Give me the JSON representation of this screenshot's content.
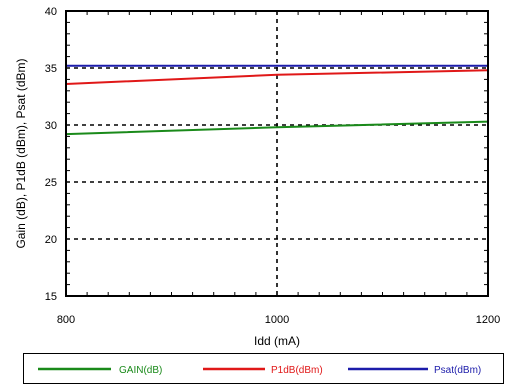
{
  "chart_data": {
    "type": "line",
    "xlabel": "Idd (mA)",
    "ylabel": "Gain (dB), P1dB (dBm), Psat (dBm)",
    "xlim": [
      800,
      1200
    ],
    "ylim": [
      15,
      40
    ],
    "x_ticks": [
      "800",
      "1000",
      "1200"
    ],
    "y_ticks": [
      "15",
      "20",
      "25",
      "30",
      "35",
      "40"
    ],
    "grid": "dashed, major ticks",
    "legend_position": "bottom",
    "series": [
      {
        "name": "GAIN(dB)",
        "color": "#1a8a1a",
        "x": [
          800,
          1000,
          1200
        ],
        "y": [
          29.2,
          29.8,
          30.3
        ]
      },
      {
        "name": "P1dB(dBm)",
        "color": "#e01818",
        "x": [
          800,
          1000,
          1200
        ],
        "y": [
          33.6,
          34.4,
          34.8
        ]
      },
      {
        "name": "Psat(dBm)",
        "color": "#1c1caa",
        "x": [
          800,
          1000,
          1200
        ],
        "y": [
          35.2,
          35.2,
          35.2
        ]
      }
    ]
  }
}
